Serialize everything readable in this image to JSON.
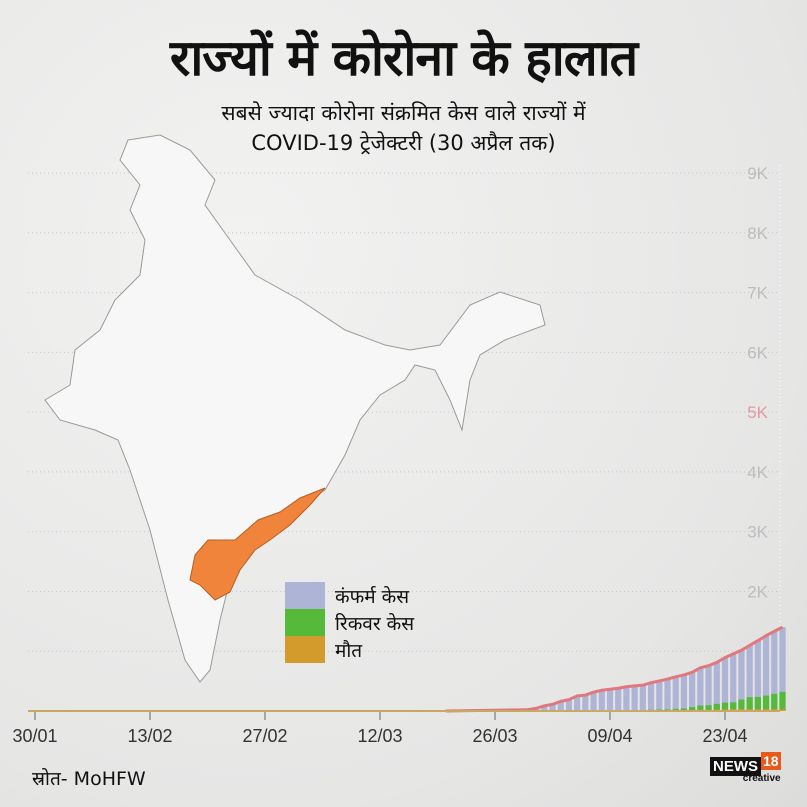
{
  "header": {
    "title": "राज्यों में कोरोना के हालात",
    "subtitle_line1": "सबसे ज्यादा कोरोना संक्रमित केस वाले राज्यों में",
    "subtitle_line2": "COVID-19 ट्रेजेक्टरी (30 अप्रैल तक)"
  },
  "source": "स्रोत- MoHFW",
  "logo": {
    "brand": "NEWS",
    "number": "18",
    "tag": "creative"
  },
  "map": {
    "highlighted_state_color": "#f0843a",
    "base_color": "#f7f7f7"
  },
  "chart_data": {
    "type": "bar",
    "ylim": [
      0,
      9000
    ],
    "y_ticks": [
      {
        "value": 2000,
        "label": "2K"
      },
      {
        "value": 3000,
        "label": "3K"
      },
      {
        "value": 4000,
        "label": "4K"
      },
      {
        "value": 5000,
        "label": "5K",
        "highlight": true
      },
      {
        "value": 6000,
        "label": "6K"
      },
      {
        "value": 7000,
        "label": "7K"
      },
      {
        "value": 8000,
        "label": "8K"
      },
      {
        "value": 9000,
        "label": "9K"
      }
    ],
    "gridlines": [
      1000,
      2000,
      3000,
      4000,
      5000,
      6000,
      7000,
      8000,
      9000
    ],
    "x_ticks": [
      "30/01",
      "13/02",
      "27/02",
      "12/03",
      "26/03",
      "09/04",
      "23/04"
    ],
    "xlim": [
      "30/01",
      "30/04"
    ],
    "colors": {
      "confirmed": "#aeb4d6",
      "recovered": "#55b93a",
      "deaths": "#d39a2c",
      "line": "#e0787e",
      "tick": "#bdbdbd",
      "tick_highlight": "#e59aa0"
    },
    "legend": [
      {
        "key": "confirmed",
        "label": "कंफर्म केस"
      },
      {
        "key": "recovered",
        "label": "रिकवर केस"
      },
      {
        "key": "deaths",
        "label": "मौत"
      }
    ],
    "dates": [
      "29/03",
      "30/03",
      "31/03",
      "01/04",
      "02/04",
      "03/04",
      "04/04",
      "05/04",
      "06/04",
      "07/04",
      "08/04",
      "09/04",
      "10/04",
      "11/04",
      "12/04",
      "13/04",
      "14/04",
      "15/04",
      "16/04",
      "17/04",
      "18/04",
      "19/04",
      "20/04",
      "21/04",
      "22/04",
      "23/04",
      "24/04",
      "25/04",
      "26/04",
      "27/04",
      "28/04",
      "29/04",
      "30/04"
    ],
    "series": [
      {
        "key": "confirmed",
        "name": "कंफर्म केस",
        "values": [
          19,
          23,
          44,
          87,
          111,
          161,
          190,
          252,
          266,
          314,
          348,
          363,
          381,
          405,
          420,
          432,
          473,
          502,
          534,
          572,
          603,
          647,
          722,
          757,
          813,
          893,
          955,
          1016,
          1097,
          1177,
          1259,
          1332,
          1403
        ]
      },
      {
        "key": "recovered",
        "name": "रिकवर केस",
        "values": [
          1,
          1,
          1,
          1,
          1,
          1,
          3,
          5,
          5,
          6,
          6,
          9,
          10,
          11,
          12,
          16,
          20,
          24,
          26,
          35,
          42,
          65,
          92,
          96,
          120,
          141,
          145,
          191,
          231,
          235,
          258,
          287,
          321
        ]
      },
      {
        "key": "deaths",
        "name": "मौत",
        "values": [
          0,
          0,
          0,
          0,
          1,
          1,
          3,
          3,
          3,
          4,
          4,
          6,
          6,
          6,
          7,
          9,
          9,
          11,
          14,
          14,
          15,
          17,
          20,
          22,
          24,
          27,
          29,
          31,
          31,
          31,
          31,
          31,
          31
        ]
      }
    ]
  }
}
